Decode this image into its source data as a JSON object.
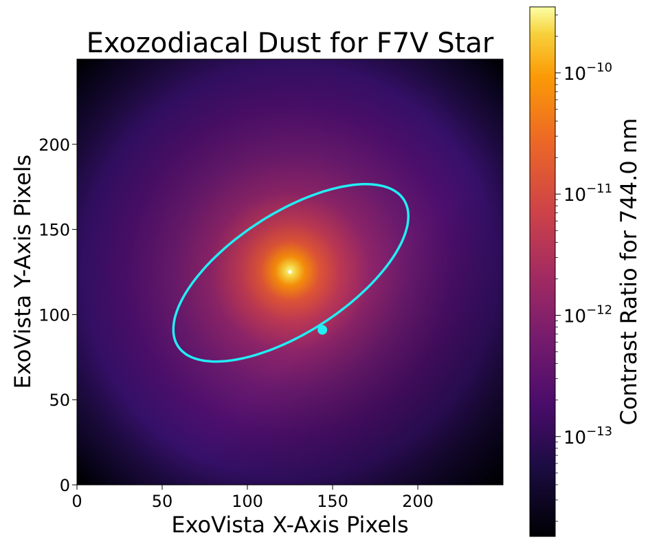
{
  "chart_data": {
    "type": "heatmap",
    "title": "Exozodiacal Dust for F7V Star",
    "xlabel": "ExoVista X-Axis Pixels",
    "ylabel": "ExoVista Y-Axis Pixels",
    "xlim": [
      0,
      250
    ],
    "ylim": [
      0,
      250
    ],
    "x_ticks": [
      0,
      50,
      100,
      150,
      200
    ],
    "y_ticks": [
      0,
      50,
      100,
      150,
      200
    ],
    "colormap": "inferno",
    "colorbar": {
      "label": "Contrast Ratio for 744.0 nm",
      "scale": "log",
      "range": [
        1.5e-14,
        3.5e-10
      ],
      "ticks": [
        {
          "value": 1e-13,
          "mantissa": "10",
          "exponent": "−13"
        },
        {
          "value": 1e-12,
          "mantissa": "10",
          "exponent": "−12"
        },
        {
          "value": 1e-11,
          "mantissa": "10",
          "exponent": "−11"
        },
        {
          "value": 1e-10,
          "mantissa": "10",
          "exponent": "−10"
        }
      ]
    },
    "star_center": {
      "x": 125,
      "y": 125
    },
    "orbit": {
      "center": {
        "x": 125.5,
        "y": 124.5
      },
      "semi_major": 79,
      "semi_minor": 35,
      "angle_deg": 33,
      "color": "#22eef5"
    },
    "planet": {
      "x": 144,
      "y": 91,
      "color": "#22eef5"
    }
  }
}
